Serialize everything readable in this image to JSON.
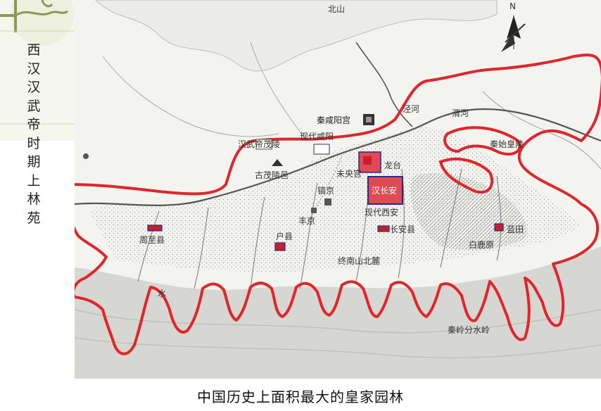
{
  "slide": {
    "vertical_title": [
      "西",
      "汉",
      "汉",
      "武",
      "帝",
      "时",
      "期",
      "上",
      "林",
      "苑"
    ],
    "caption": "中国历史上面积最大的皇家园林"
  },
  "map": {
    "north_label": "N",
    "labels": {
      "beishan": "北山",
      "qinxianyanggong": "秦咸阳宫",
      "jinghe": "泾河",
      "weihe": "渭河",
      "xiandaixianyang": "现代咸阳",
      "hanwudi_maoling": "汉武帝茂陵",
      "gumaolingyi": "古茂陵邑",
      "qinshihuangling": "秦始皇陵",
      "weiyanggong": "未央宫",
      "changan": "汉长安",
      "jiangjing": "镐京",
      "xiandaixian": "现代西安",
      "zhouxian": "周至县",
      "huxian": "户县",
      "changanxian": "长安县",
      "lantian": "蓝田",
      "zhongnanshan": "终南山北麓",
      "bailuyuan": "白鹿原",
      "qinlingfenshuiling": "秦岭分水岭",
      "fengjing": "丰京",
      "longtai": "龙台",
      "shui": "水"
    },
    "colors": {
      "boundary": "#e0262a",
      "marker": "#c8202a",
      "marker_box": "#2a2a8c"
    }
  }
}
